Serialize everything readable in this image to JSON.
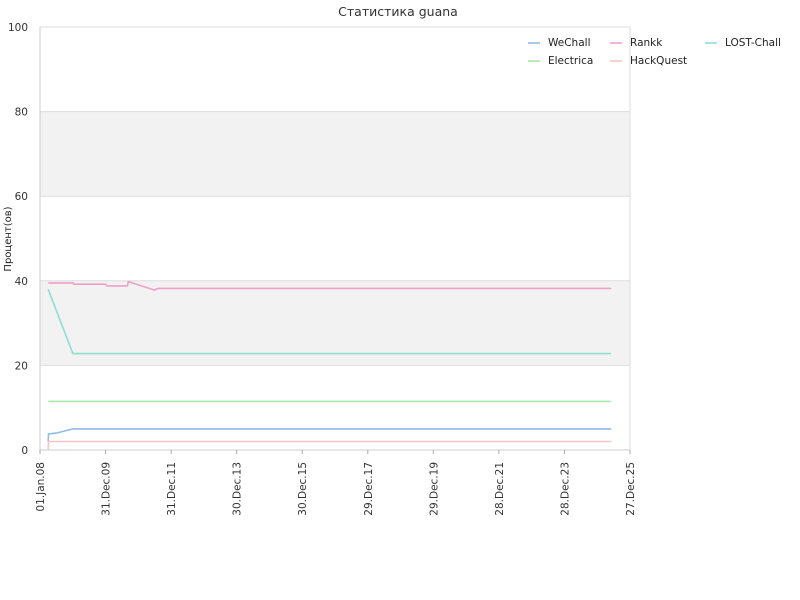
{
  "chart_data": {
    "type": "line",
    "title": "Статистика guana",
    "xlabel": "",
    "ylabel": "Процент(ов)",
    "xlim": [
      "2008-01-01",
      "2025-12-27"
    ],
    "ylim": [
      0,
      100
    ],
    "y_ticks": [
      "0",
      "20",
      "40",
      "60",
      "80",
      "100"
    ],
    "x_ticks": [
      {
        "date": "2008-01-01",
        "label": "01.Jan.08"
      },
      {
        "date": "2009-12-31",
        "label": "31.Dec.09"
      },
      {
        "date": "2011-12-31",
        "label": "31.Dec.11"
      },
      {
        "date": "2013-12-30",
        "label": "30.Dec.13"
      },
      {
        "date": "2015-12-30",
        "label": "30.Dec.15"
      },
      {
        "date": "2017-12-29",
        "label": "29.Dec.17"
      },
      {
        "date": "2019-12-29",
        "label": "29.Dec.19"
      },
      {
        "date": "2021-12-28",
        "label": "28.Dec.21"
      },
      {
        "date": "2023-12-28",
        "label": "28.Dec.23"
      },
      {
        "date": "2025-12-27",
        "label": "27.Dec.25"
      }
    ],
    "bands": [
      [
        20,
        40
      ],
      [
        60,
        80
      ]
    ],
    "grid": true,
    "legend_position": "top-right",
    "series": [
      {
        "name": "WeChall",
        "color": "#8fbce8",
        "points": [
          [
            "2008-04-01",
            2
          ],
          [
            "2008-04-05",
            3.8
          ],
          [
            "2008-07-01",
            4.0
          ],
          [
            "2009-01-01",
            5.0
          ],
          [
            "2025-06-01",
            5.0
          ]
        ]
      },
      {
        "name": "Rankk",
        "color": "#f0a0c8",
        "points": [
          [
            "2008-04-01",
            39.5
          ],
          [
            "2009-01-01",
            39.5
          ],
          [
            "2009-01-15",
            39.2
          ],
          [
            "2010-01-01",
            39.2
          ],
          [
            "2010-01-15",
            38.8
          ],
          [
            "2010-09-01",
            38.8
          ],
          [
            "2010-09-10",
            39.8
          ],
          [
            "2011-07-01",
            37.8
          ],
          [
            "2011-08-01",
            38.2
          ],
          [
            "2025-06-01",
            38.2
          ]
        ]
      },
      {
        "name": "LOST-Chall",
        "color": "#8ee0d0",
        "points": [
          [
            "2008-04-01",
            38
          ],
          [
            "2009-01-01",
            22.8
          ],
          [
            "2025-06-01",
            22.8
          ]
        ]
      },
      {
        "name": "Electrica",
        "color": "#a8e8a8",
        "points": [
          [
            "2008-04-01",
            11.5
          ],
          [
            "2025-06-01",
            11.5
          ]
        ]
      },
      {
        "name": "HackQuest",
        "color": "#f8c4c4",
        "points": [
          [
            "2008-04-01",
            0
          ],
          [
            "2008-04-05",
            2.0
          ],
          [
            "2025-06-01",
            2.0
          ]
        ]
      }
    ]
  }
}
